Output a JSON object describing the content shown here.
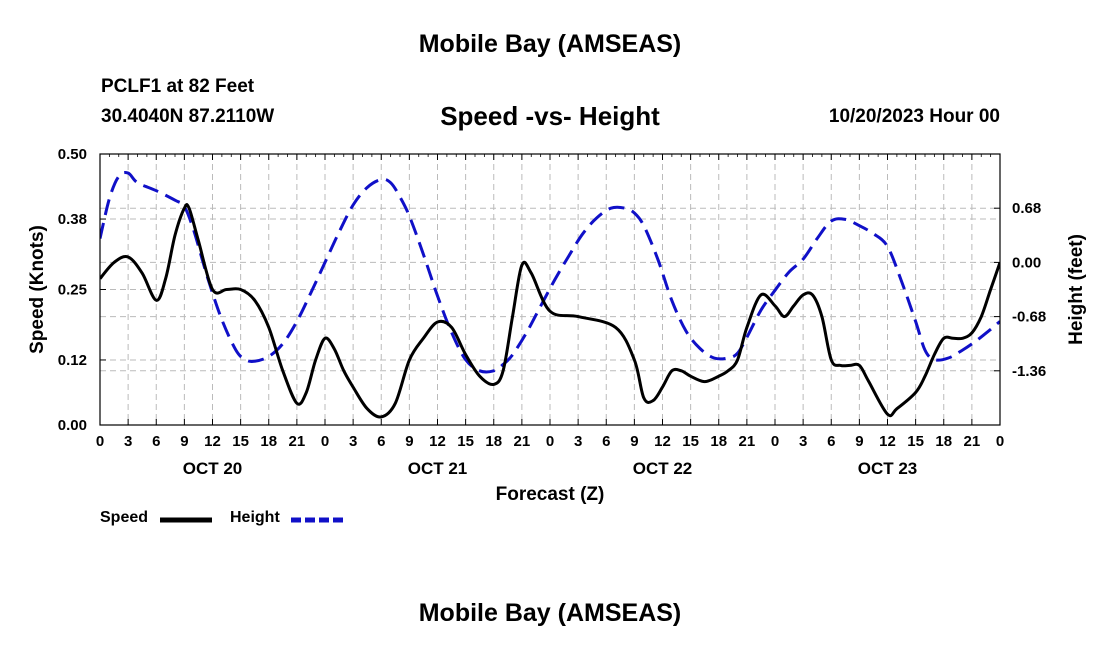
{
  "page": {
    "title": "Mobile Bay (AMSEAS)",
    "station": "PCLF1 at 82 Feet",
    "coords": "30.4040N  87.2110W",
    "subtitle": "Speed -vs- Height",
    "run_time": "10/20/2023 Hour 00",
    "bottom_title": "Mobile Bay (AMSEAS)"
  },
  "colors": {
    "speed": "#000000",
    "height": "#1010c8",
    "grid": "#bbbbbb"
  },
  "chart_data": {
    "type": "line",
    "xlabel": "Forecast (Z)",
    "ylabel_left": "Speed (Knots)",
    "ylabel_right": "Height (feet)",
    "x_range": [
      0,
      96
    ],
    "ylim_left": [
      0,
      0.5
    ],
    "ylim_right": [
      -2.04,
      1.36
    ],
    "left_ticks": [
      0.0,
      0.12,
      0.25,
      0.38,
      0.5
    ],
    "left_tick_labels": [
      "0.00",
      "0.12",
      "0.25",
      "0.38",
      "0.50"
    ],
    "right_ticks": [
      -1.36,
      -0.68,
      0.0,
      0.68
    ],
    "right_tick_labels": [
      "-1.36",
      "-0.68",
      "0.00",
      "0.68"
    ],
    "x_ticks": [
      0,
      3,
      6,
      9,
      12,
      15,
      18,
      21,
      24,
      27,
      30,
      33,
      36,
      39,
      42,
      45,
      48,
      51,
      54,
      57,
      60,
      63,
      66,
      69,
      72,
      75,
      78,
      81,
      84,
      87,
      90,
      93,
      96
    ],
    "x_tick_labels": [
      "0",
      "3",
      "6",
      "9",
      "12",
      "15",
      "18",
      "21",
      "0",
      "3",
      "6",
      "9",
      "12",
      "15",
      "18",
      "21",
      "0",
      "3",
      "6",
      "9",
      "12",
      "15",
      "18",
      "21",
      "0",
      "3",
      "6",
      "9",
      "12",
      "15",
      "18",
      "21",
      "0"
    ],
    "day_labels": [
      {
        "x": 12,
        "label": "OCT 20"
      },
      {
        "x": 36,
        "label": "OCT 21"
      },
      {
        "x": 60,
        "label": "OCT 22"
      },
      {
        "x": 84,
        "label": "OCT 23"
      }
    ],
    "grid": true,
    "legend_position": "bottom-left",
    "series": [
      {
        "name": "Speed",
        "axis": "left",
        "style": "solid",
        "x": [
          0,
          1.5,
          3,
          4.5,
          6,
          7,
          8,
          9,
          9.5,
          10.5,
          12,
          13.5,
          15,
          16.5,
          18,
          19.5,
          21,
          22,
          23,
          24,
          25,
          26,
          27,
          28.5,
          30,
          31.5,
          33,
          34.5,
          36,
          37.5,
          39,
          40.5,
          42,
          43,
          44,
          45,
          46,
          48,
          51,
          55,
          57,
          58,
          59,
          60,
          61,
          62,
          63,
          64.5,
          66,
          67,
          68,
          69,
          70.5,
          72,
          73,
          74,
          75,
          76,
          77,
          78,
          79,
          80,
          81,
          82,
          84,
          85,
          87,
          88,
          89,
          90,
          91,
          92,
          93,
          94,
          95,
          96
        ],
        "y": [
          0.27,
          0.3,
          0.31,
          0.28,
          0.23,
          0.27,
          0.35,
          0.4,
          0.4,
          0.34,
          0.25,
          0.25,
          0.25,
          0.23,
          0.18,
          0.1,
          0.04,
          0.06,
          0.12,
          0.16,
          0.14,
          0.1,
          0.07,
          0.03,
          0.015,
          0.04,
          0.12,
          0.16,
          0.19,
          0.18,
          0.13,
          0.09,
          0.075,
          0.1,
          0.2,
          0.295,
          0.28,
          0.21,
          0.2,
          0.18,
          0.12,
          0.05,
          0.045,
          0.07,
          0.1,
          0.1,
          0.09,
          0.08,
          0.09,
          0.1,
          0.12,
          0.18,
          0.24,
          0.22,
          0.2,
          0.22,
          0.24,
          0.24,
          0.2,
          0.12,
          0.11,
          0.11,
          0.11,
          0.08,
          0.02,
          0.03,
          0.06,
          0.09,
          0.13,
          0.16,
          0.16,
          0.16,
          0.17,
          0.2,
          0.25,
          0.3
        ]
      },
      {
        "name": "Height",
        "axis": "right",
        "style": "dashed",
        "x": [
          0,
          1,
          2,
          3,
          4,
          6,
          8,
          9,
          10,
          11.5,
          13,
          14.5,
          15.5,
          16.5,
          18,
          19.5,
          21,
          22.5,
          24,
          25.5,
          27,
          28.5,
          30,
          31,
          32,
          33,
          34.5,
          36,
          37.5,
          39,
          40.5,
          42,
          43,
          44,
          45.5,
          47,
          48.5,
          50,
          51.5,
          53,
          54.5,
          56,
          57,
          58,
          59.5,
          61,
          62.5,
          64,
          65.5,
          67,
          68,
          69,
          70.5,
          72,
          73.5,
          75,
          76.5,
          78,
          79.5,
          81,
          82.5,
          84,
          85.5,
          87,
          88,
          89,
          90.5,
          92,
          93.5,
          95,
          96
        ],
        "y": [
          0.3,
          0.8,
          1.08,
          1.12,
          1.0,
          0.9,
          0.78,
          0.7,
          0.4,
          -0.2,
          -0.72,
          -1.1,
          -1.22,
          -1.24,
          -1.18,
          -1.02,
          -0.74,
          -0.38,
          0.0,
          0.38,
          0.72,
          0.94,
          1.04,
          1.0,
          0.82,
          0.58,
          0.1,
          -0.42,
          -0.88,
          -1.22,
          -1.36,
          -1.36,
          -1.28,
          -1.16,
          -0.88,
          -0.55,
          -0.22,
          0.08,
          0.36,
          0.56,
          0.68,
          0.68,
          0.62,
          0.46,
          0.04,
          -0.48,
          -0.86,
          -1.08,
          -1.2,
          -1.2,
          -1.14,
          -0.94,
          -0.6,
          -0.35,
          -0.12,
          0.04,
          0.3,
          0.52,
          0.54,
          0.46,
          0.36,
          0.2,
          -0.24,
          -0.74,
          -1.1,
          -1.22,
          -1.2,
          -1.1,
          -0.98,
          -0.84,
          -0.74
        ]
      }
    ]
  }
}
